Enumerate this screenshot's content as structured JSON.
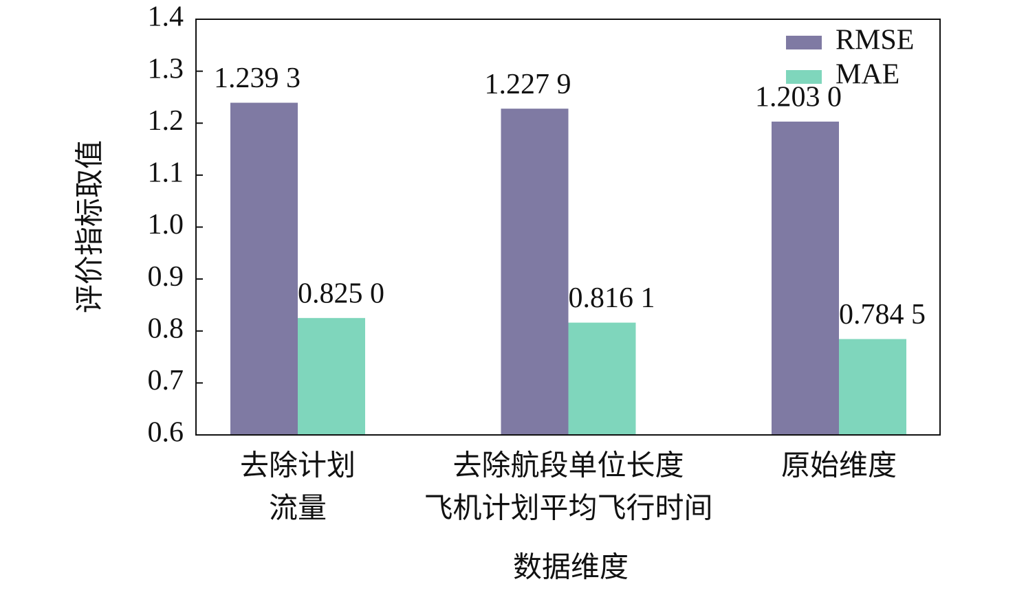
{
  "chart_data": {
    "type": "bar",
    "x_label": "数据维度",
    "y_label": "评价指标取值",
    "categories": [
      [
        "去除计划",
        "流量"
      ],
      [
        "去除航段单位长度",
        "飞机计划平均飞行时间"
      ],
      [
        "原始维度"
      ]
    ],
    "series": [
      {
        "name": "RMSE",
        "color": "#7f7aa3",
        "values": [
          1.2393,
          1.2279,
          1.203
        ],
        "value_labels": [
          "1.239 3",
          "1.227 9",
          "1.203 0"
        ]
      },
      {
        "name": "MAE",
        "color": "#7fd6bc",
        "values": [
          0.825,
          0.8161,
          0.7845
        ],
        "value_labels": [
          "0.825 0",
          "0.816 1",
          "0.784 5"
        ]
      }
    ],
    "ylim": [
      0.6,
      1.4
    ],
    "yticks": [
      0.6,
      0.7,
      0.8,
      0.9,
      {
        "value": 1,
        "label": "1.0"
      },
      1.1,
      1.2,
      1.3,
      1.4
    ],
    "legend": "upper-right"
  }
}
